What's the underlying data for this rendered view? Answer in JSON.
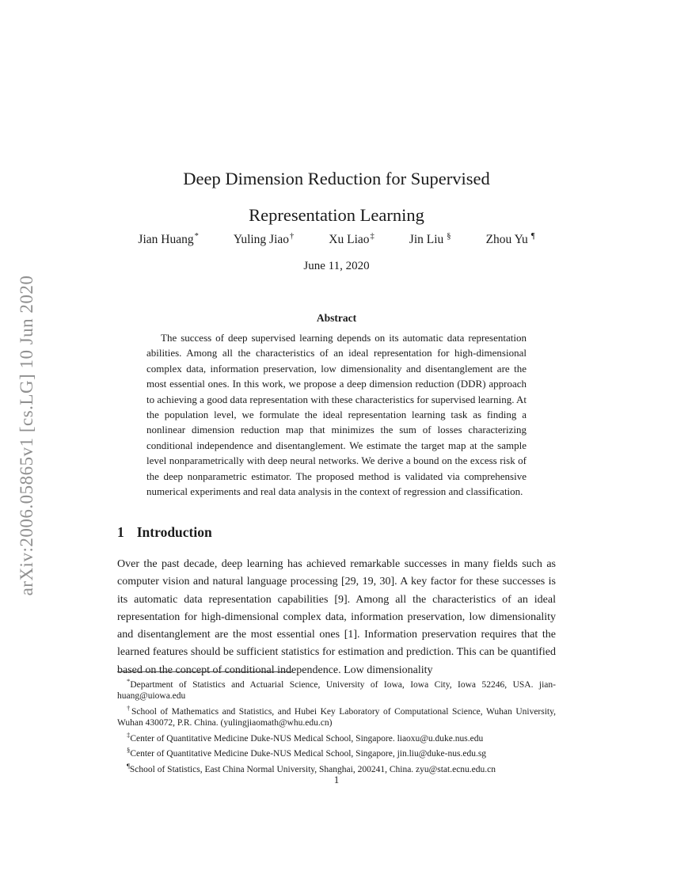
{
  "arxiv_banner": "arXiv:2006.05865v1  [cs.LG]  10 Jun 2020",
  "title": {
    "line1": "Deep Dimension Reduction for Supervised",
    "line2": "Representation Learning"
  },
  "authors": [
    {
      "name": "Jian Huang",
      "mark": "*"
    },
    {
      "name": "Yuling Jiao",
      "mark": "†"
    },
    {
      "name": "Xu Liao",
      "mark": "‡"
    },
    {
      "name": "Jin Liu",
      "mark": "§"
    },
    {
      "name": "Zhou Yu",
      "mark": "¶"
    }
  ],
  "date": "June 11, 2020",
  "abstract": {
    "heading": "Abstract",
    "text": "The success of deep supervised learning depends on its automatic data representation abilities. Among all the characteristics of an ideal representation for high-dimensional complex data, information preservation, low dimensionality and disentanglement are the most essential ones. In this work, we propose a deep dimension reduction (DDR) approach to achieving a good data representation with these characteristics for supervised learning. At the population level, we formulate the ideal representation learning task as finding a nonlinear dimension reduction map that minimizes the sum of losses characterizing conditional independence and disentanglement. We estimate the target map at the sample level nonparametrically with deep neural networks. We derive a bound on the excess risk of the deep nonparametric estimator. The proposed method is validated via comprehensive numerical experiments and real data analysis in the context of regression and classification."
  },
  "section": {
    "number": "1",
    "title": "Introduction",
    "paragraph": "Over the past decade, deep learning has achieved remarkable successes in many fields such as computer vision and natural language processing [29, 19, 30]. A key factor for these successes is its automatic data representation capabilities [9]. Among all the characteristics of an ideal representation for high-dimensional complex data, information preservation, low dimensionality and disentanglement are the most essential ones [1]. Information preservation requires that the learned features should be sufficient statistics for estimation and prediction. This can be quantified based on the concept of conditional independence. Low dimensionality"
  },
  "footnotes": [
    {
      "mark": "*",
      "text": "Department of Statistics and Actuarial Science, University of Iowa, Iowa City, Iowa 52246, USA. jian-huang@uiowa.edu"
    },
    {
      "mark": "†",
      "text": "School of Mathematics and Statistics, and Hubei Key Laboratory of Computational Science, Wuhan University, Wuhan 430072, P.R. China. (yulingjiaomath@whu.edu.cn)"
    },
    {
      "mark": "‡",
      "text": "Center of Quantitative Medicine Duke-NUS Medical School, Singapore. liaoxu@u.duke.nus.edu"
    },
    {
      "mark": "§",
      "text": "Center of Quantitative Medicine Duke-NUS Medical School, Singapore, jin.liu@duke-nus.edu.sg"
    },
    {
      "mark": "¶",
      "text": "School of Statistics, East China Normal University, Shanghai, 200241, China. zyu@stat.ecnu.edu.cn"
    }
  ],
  "page_number": "1",
  "colors": {
    "text": "#1b1b1b",
    "banner_gray": "#8f8f8f",
    "background": "#ffffff"
  }
}
